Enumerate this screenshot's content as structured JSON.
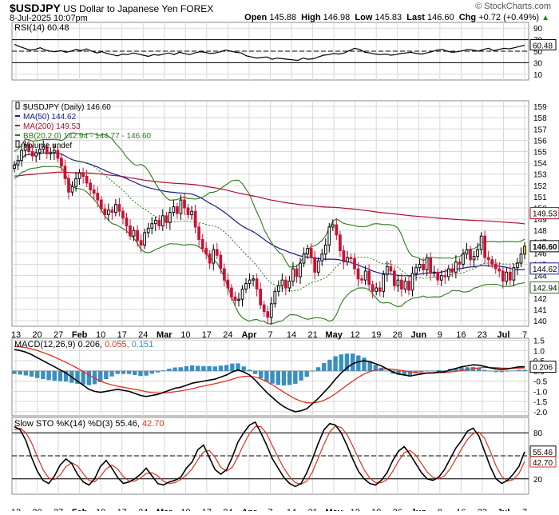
{
  "header": {
    "symbol": "$USDJPY",
    "name": "US Dollar to Japanese Yen FOREX",
    "watermark": "© StockCharts.com",
    "date": "8-Jul-2025 10:07pm",
    "ohlc": [
      {
        "label": "Open",
        "value": "145.88"
      },
      {
        "label": "High",
        "value": "146.98"
      },
      {
        "label": "Low",
        "value": "145.83"
      },
      {
        "label": "Last",
        "value": "146.60"
      },
      {
        "label": "Chg",
        "value": "+0.72 (+0.49%)"
      }
    ],
    "chg_arrow_icon": "triangle-up-icon"
  },
  "colors": {
    "up": "#000000",
    "down": "#cc1133",
    "ma50": "#1a1a8c",
    "ma200": "#b01030",
    "bb": "#2a7a1a",
    "macd_hist": "#3a8fc0",
    "signal": "#e03020",
    "last_candle": "#f2e62a",
    "grid": "#d8d8d8"
  },
  "x_axis_labels": [
    {
      "text": "13",
      "bold": false
    },
    {
      "text": "20",
      "bold": false
    },
    {
      "text": "27",
      "bold": false
    },
    {
      "text": "Feb",
      "bold": true
    },
    {
      "text": "10",
      "bold": false
    },
    {
      "text": "17",
      "bold": false
    },
    {
      "text": "24",
      "bold": false
    },
    {
      "text": "Mar",
      "bold": true
    },
    {
      "text": "10",
      "bold": false
    },
    {
      "text": "17",
      "bold": false
    },
    {
      "text": "24",
      "bold": false
    },
    {
      "text": "Apr",
      "bold": true
    },
    {
      "text": "7",
      "bold": false
    },
    {
      "text": "14",
      "bold": false
    },
    {
      "text": "21",
      "bold": false
    },
    {
      "text": "May",
      "bold": true
    },
    {
      "text": "12",
      "bold": false
    },
    {
      "text": "19",
      "bold": false
    },
    {
      "text": "26",
      "bold": false
    },
    {
      "text": "Jun",
      "bold": true
    },
    {
      "text": "9",
      "bold": false
    },
    {
      "text": "16",
      "bold": false
    },
    {
      "text": "23",
      "bold": false
    },
    {
      "text": "Jul",
      "bold": true
    },
    {
      "text": "7",
      "bold": false
    }
  ],
  "chart_data": [
    {
      "type": "line",
      "panel": "rsi",
      "title": "RSI(14) 60.48",
      "ylim": [
        0,
        100
      ],
      "yticks": [
        "90",
        "70",
        "50",
        "30",
        "10"
      ],
      "reference_lines": [
        70,
        50,
        30
      ],
      "last_value_label": "60.48",
      "values": [
        62,
        58,
        55,
        52,
        53,
        56,
        52,
        50,
        49,
        51,
        48,
        50,
        53,
        51,
        54,
        50,
        47,
        49,
        46,
        44,
        42,
        45,
        44,
        47,
        45,
        43,
        41,
        44,
        43,
        45,
        47,
        44,
        48,
        46,
        44,
        47,
        49,
        48,
        46,
        47,
        49,
        52,
        50,
        48,
        47,
        42,
        40,
        38,
        39,
        40,
        36,
        38,
        37,
        36,
        35,
        34,
        38,
        36,
        37,
        40,
        43,
        44,
        46,
        45,
        47,
        51,
        55,
        53,
        48,
        47,
        45,
        44,
        45,
        43,
        44,
        46,
        47,
        48,
        46,
        45,
        47,
        49,
        52,
        53,
        50,
        48,
        49,
        51,
        53,
        52,
        50,
        53,
        55,
        51,
        53,
        55,
        54,
        56,
        58,
        60.48
      ]
    },
    {
      "type": "candlestick",
      "panel": "price",
      "title": "$USDJPY (Daily) 146.60",
      "ylim": [
        139.5,
        159.5
      ],
      "yticks": [
        "159",
        "158",
        "157",
        "156",
        "155",
        "154",
        "153",
        "152",
        "151",
        "150",
        "149",
        "148",
        "147",
        "146",
        "145",
        "144",
        "143",
        "142",
        "141",
        "140"
      ],
      "legend": [
        {
          "text": "$USDJPY (Daily) 146.60",
          "icon": "candle-icon"
        },
        {
          "text": "MA(50) 144.62",
          "color_key": "ma50"
        },
        {
          "text": "MA(200) 149.53",
          "color_key": "ma200"
        },
        {
          "text": "BB(20,2.0) 142.94 - 144.77 - 146.60",
          "color_key": "bb"
        },
        {
          "text": "Volume undef",
          "icon": "bars-icon"
        }
      ],
      "last_value_labels": [
        {
          "text": "149.53",
          "value": 149.53,
          "color_key": "ma200",
          "bold": false
        },
        {
          "text": "146.60",
          "value": 146.6,
          "color_key": "up",
          "bold": true
        },
        {
          "text": "144.62",
          "value": 144.62,
          "color_key": "ma50",
          "bold": false
        },
        {
          "text": "142.94",
          "value": 142.94,
          "color_key": "bb",
          "bold": false
        }
      ],
      "close": [
        153.8,
        154.2,
        155.1,
        155.6,
        155.0,
        154.6,
        154.9,
        155.2,
        155.4,
        154.8,
        154.9,
        155.1,
        154.4,
        153.7,
        152.6,
        151.4,
        151.9,
        152.6,
        153.1,
        152.8,
        152.2,
        151.6,
        151.3,
        150.7,
        149.9,
        149.4,
        149.8,
        149.6,
        150.3,
        149.7,
        149.1,
        148.4,
        147.5,
        148.0,
        147.1,
        146.7,
        147.8,
        148.2,
        148.6,
        148.9,
        148.4,
        149.3,
        148.7,
        149.6,
        150.1,
        149.5,
        150.7,
        150.0,
        149.4,
        149.7,
        148.3,
        147.2,
        146.4,
        145.9,
        145.1,
        146.3,
        145.8,
        144.6,
        143.6,
        142.9,
        142.1,
        141.8,
        141.9,
        142.8,
        143.3,
        143.6,
        143.7,
        142.8,
        141.4,
        140.8,
        140.3,
        141.5,
        142.6,
        143.1,
        143.6,
        142.9,
        143.5,
        144.6,
        143.9,
        145.1,
        145.9,
        146.4,
        145.6,
        144.3,
        145.3,
        145.9,
        146.7,
        148.3,
        148.5,
        147.6,
        146.2,
        145.2,
        145.6,
        145.5,
        144.6,
        143.7,
        143.6,
        144.4,
        143.2,
        142.6,
        142.9,
        142.6,
        144.1,
        144.8,
        144.4,
        143.1,
        143.6,
        142.8,
        143.5,
        142.7,
        144.2,
        144.7,
        145.0,
        144.5,
        145.6,
        144.2,
        144.3,
        143.6,
        144.0,
        143.9,
        144.6,
        144.3,
        145.2,
        145.0,
        145.9,
        146.3,
        145.4,
        145.7,
        146.3,
        147.5,
        145.6,
        145.4,
        145.0,
        144.6,
        144.4,
        143.5,
        144.3,
        143.6,
        144.7,
        145.1,
        145.9,
        146.6
      ]
    },
    {
      "type": "line",
      "panel": "macd",
      "title": "MACD(12,26,9)",
      "title_values": [
        "0.206",
        "0.055",
        "0.151"
      ],
      "ylim": [
        -2.2,
        1.6
      ],
      "yticks": [
        "1.5",
        "1.0",
        "0.5",
        "0.0",
        "-0.5",
        "-1.0",
        "-1.5",
        "-2.0"
      ],
      "last_value_label": "0.206",
      "macd": [
        1.05,
        1.0,
        0.92,
        0.8,
        0.65,
        0.5,
        0.35,
        0.2,
        0.05,
        -0.1,
        -0.3,
        -0.5,
        -0.7,
        -0.9,
        -1.0,
        -1.05,
        -1.0,
        -0.95,
        -0.9,
        -0.95,
        -1.0,
        -1.1,
        -1.2,
        -1.25,
        -1.2,
        -1.15,
        -1.05,
        -0.95,
        -0.85,
        -0.8,
        -0.7,
        -0.6,
        -0.55,
        -0.5,
        -0.45,
        -0.4,
        -0.3,
        -0.2,
        -0.05,
        0.05,
        -0.05,
        -0.2,
        -0.45,
        -0.75,
        -1.05,
        -1.3,
        -1.55,
        -1.75,
        -1.9,
        -2.0,
        -1.95,
        -1.85,
        -1.6,
        -1.35,
        -1.05,
        -0.75,
        -0.4,
        -0.1,
        0.15,
        0.35,
        0.45,
        0.5,
        0.45,
        0.35,
        0.25,
        0.1,
        -0.05,
        -0.15,
        -0.2,
        -0.25,
        -0.2,
        -0.15,
        -0.1,
        -0.1,
        -0.05,
        -0.05,
        0.05,
        0.12,
        0.2,
        0.25,
        0.3,
        0.28,
        0.22,
        0.15,
        0.1,
        0.08,
        0.1,
        0.15,
        0.2,
        0.206
      ],
      "signal": [
        1.2,
        1.18,
        1.14,
        1.08,
        1.0,
        0.9,
        0.8,
        0.68,
        0.55,
        0.42,
        0.28,
        0.13,
        -0.03,
        -0.2,
        -0.35,
        -0.5,
        -0.6,
        -0.68,
        -0.75,
        -0.8,
        -0.85,
        -0.9,
        -0.95,
        -1.02,
        -1.06,
        -1.08,
        -1.08,
        -1.06,
        -1.02,
        -0.98,
        -0.93,
        -0.87,
        -0.8,
        -0.74,
        -0.68,
        -0.62,
        -0.56,
        -0.49,
        -0.41,
        -0.32,
        -0.27,
        -0.26,
        -0.3,
        -0.39,
        -0.52,
        -0.68,
        -0.86,
        -1.04,
        -1.21,
        -1.37,
        -1.48,
        -1.56,
        -1.57,
        -1.53,
        -1.44,
        -1.3,
        -1.12,
        -0.91,
        -0.7,
        -0.5,
        -0.31,
        -0.15,
        -0.03,
        0.05,
        0.09,
        0.1,
        0.08,
        0.04,
        0.0,
        -0.05,
        -0.08,
        -0.1,
        -0.1,
        -0.1,
        -0.09,
        -0.08,
        -0.05,
        -0.02,
        0.02,
        0.07,
        0.11,
        0.15,
        0.17,
        0.17,
        0.16,
        0.14,
        0.13,
        0.13,
        0.14,
        0.151
      ],
      "histogram": [
        -0.15,
        -0.18,
        -0.22,
        -0.28,
        -0.35,
        -0.4,
        -0.45,
        -0.48,
        -0.5,
        -0.52,
        -0.58,
        -0.63,
        -0.67,
        -0.7,
        -0.65,
        -0.55,
        -0.4,
        -0.27,
        -0.15,
        -0.15,
        -0.15,
        -0.2,
        -0.25,
        -0.23,
        -0.14,
        -0.07,
        0.03,
        0.11,
        0.17,
        0.18,
        0.23,
        0.27,
        0.25,
        0.24,
        0.23,
        0.22,
        0.26,
        0.29,
        0.36,
        0.37,
        0.22,
        0.06,
        -0.15,
        -0.36,
        -0.53,
        -0.62,
        -0.69,
        -0.71,
        -0.69,
        -0.63,
        -0.47,
        -0.29,
        -0.03,
        0.18,
        0.39,
        0.55,
        0.72,
        0.81,
        0.85,
        0.85,
        0.76,
        0.65,
        0.48,
        0.3,
        0.16,
        0.0,
        -0.13,
        -0.19,
        -0.2,
        -0.2,
        -0.12,
        -0.05,
        0.0,
        0.0,
        0.04,
        0.03,
        0.1,
        0.14,
        0.18,
        0.18,
        0.19,
        0.13,
        0.05,
        -0.02,
        -0.06,
        -0.06,
        -0.03,
        0.02,
        0.06,
        0.055
      ]
    },
    {
      "type": "line",
      "panel": "sto",
      "title": "Slow STO %K(14) %D(3)",
      "title_values": [
        "55.46",
        "42.70"
      ],
      "ylim": [
        0,
        100
      ],
      "yticks": [
        "80",
        "50",
        "20"
      ],
      "reference_lines": [
        80,
        50,
        20
      ],
      "last_value_labels": [
        "55.46",
        "42.70"
      ],
      "k": [
        88,
        84,
        70,
        48,
        30,
        18,
        14,
        24,
        38,
        46,
        40,
        26,
        16,
        12,
        20,
        36,
        44,
        34,
        22,
        14,
        16,
        20,
        26,
        34,
        24,
        14,
        12,
        16,
        18,
        22,
        34,
        42,
        58,
        64,
        48,
        32,
        26,
        32,
        48,
        68,
        80,
        90,
        94,
        80,
        64,
        46,
        34,
        22,
        14,
        10,
        14,
        28,
        46,
        66,
        84,
        92,
        90,
        80,
        64,
        46,
        30,
        20,
        14,
        12,
        18,
        28,
        44,
        56,
        62,
        52,
        40,
        28,
        20,
        18,
        22,
        32,
        46,
        60,
        70,
        82,
        86,
        76,
        56,
        36,
        20,
        14,
        18,
        26,
        36,
        55.46
      ],
      "d": [
        84,
        86,
        80,
        67,
        49,
        32,
        21,
        19,
        25,
        36,
        41,
        37,
        27,
        18,
        16,
        23,
        33,
        38,
        33,
        23,
        17,
        17,
        21,
        27,
        28,
        24,
        17,
        14,
        15,
        19,
        25,
        33,
        45,
        55,
        57,
        48,
        35,
        30,
        35,
        49,
        65,
        79,
        88,
        88,
        79,
        63,
        48,
        34,
        23,
        15,
        13,
        17,
        29,
        47,
        65,
        81,
        89,
        87,
        78,
        63,
        47,
        32,
        21,
        15,
        15,
        19,
        30,
        43,
        54,
        57,
        51,
        40,
        29,
        22,
        20,
        24,
        33,
        46,
        59,
        71,
        79,
        81,
        73,
        56,
        37,
        23,
        17,
        19,
        27,
        42.7
      ]
    }
  ]
}
